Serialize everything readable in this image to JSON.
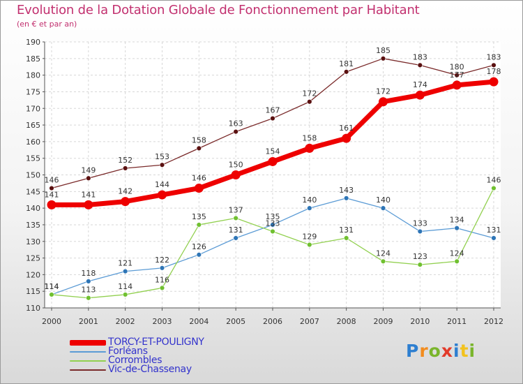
{
  "title": "Evolution de la Dotation Globale de Fonctionnement par Habitant",
  "subtitle": "(en € et par an)",
  "brand": {
    "text": "Proxiti",
    "letters": [
      {
        "ch": "P",
        "color": "#2e7fd0"
      },
      {
        "ch": "r",
        "color": "#f28c1e"
      },
      {
        "ch": "o",
        "color": "#7ab52c"
      },
      {
        "ch": "x",
        "color": "#e23a2a"
      },
      {
        "ch": "i",
        "color": "#2e7fd0"
      },
      {
        "ch": "t",
        "color": "#f2c21e"
      },
      {
        "ch": "i",
        "color": "#7ab52c"
      }
    ]
  },
  "chart_data": {
    "type": "line",
    "x": [
      "2000",
      "2001",
      "2002",
      "2003",
      "2004",
      "2005",
      "2006",
      "2007",
      "2008",
      "2009",
      "2010",
      "2011",
      "2012"
    ],
    "ylim": [
      110,
      190
    ],
    "yticks": [
      110,
      115,
      120,
      125,
      130,
      135,
      140,
      145,
      150,
      155,
      160,
      165,
      170,
      175,
      180,
      185,
      190
    ],
    "grid": true,
    "legend_position": "bottom-left",
    "series": [
      {
        "name": "TORCY-ET-POULIGNY",
        "color": "#ee0000",
        "marker": "#ee0000",
        "values": [
          141,
          141,
          142,
          144,
          146,
          150,
          154,
          158,
          161,
          172,
          174,
          177,
          178
        ]
      },
      {
        "name": "Forléans",
        "color": "#5b9bd5",
        "marker": "#2e75b6",
        "values": [
          114,
          118,
          121,
          122,
          126,
          131,
          135,
          140,
          143,
          140,
          133,
          134,
          131
        ]
      },
      {
        "name": "Corrombles",
        "color": "#92d050",
        "marker": "#70c030",
        "values": [
          114,
          113,
          114,
          116,
          135,
          137,
          133,
          129,
          131,
          124,
          123,
          124,
          146
        ]
      },
      {
        "name": "Vic-de-Chassenay",
        "color": "#7a2a2a",
        "marker": "#5a1010",
        "values": [
          146,
          149,
          152,
          153,
          158,
          163,
          167,
          172,
          181,
          185,
          183,
          180,
          183
        ]
      }
    ]
  }
}
